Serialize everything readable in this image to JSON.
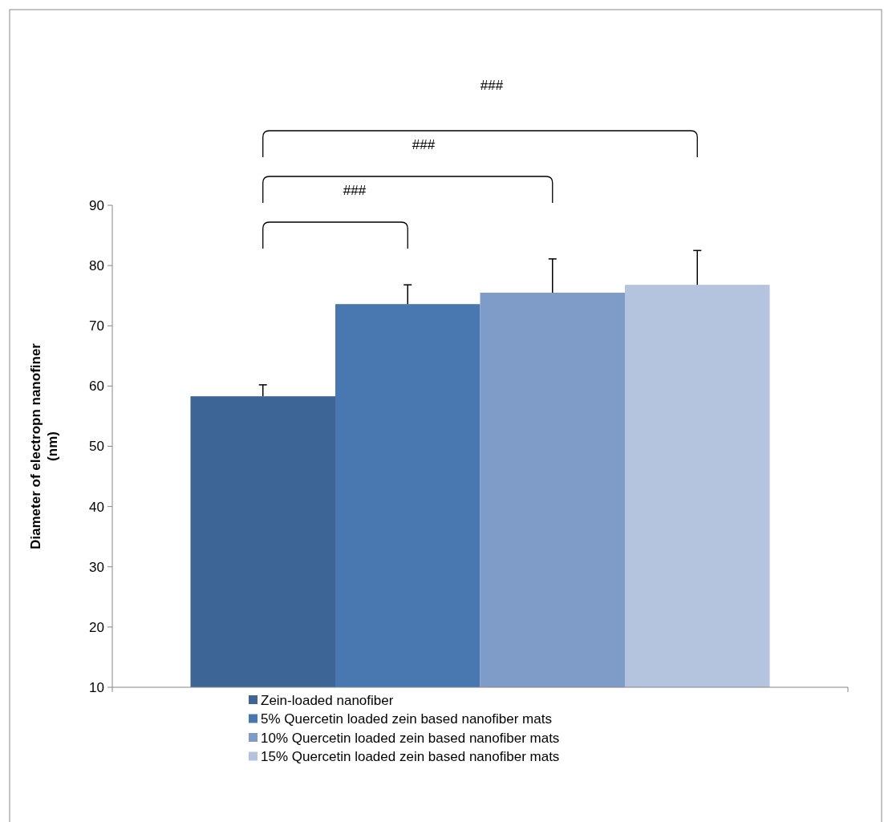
{
  "chart_data": {
    "type": "bar",
    "ylabel": "Diameter of electropn nanofiner (nm)",
    "categories": [
      null
    ],
    "ylim": [
      10,
      90
    ],
    "yticks": [
      10,
      20,
      30,
      40,
      50,
      60,
      70,
      80,
      90
    ],
    "grid": false,
    "legend": "bottom",
    "series": [
      {
        "name": "Zein-loaded nanofiber",
        "color": "#3d6696",
        "values": [
          58.3
        ],
        "errors": [
          [
            58.3,
            60.2
          ]
        ]
      },
      {
        "name": "5% Quercetin loaded zein based nanofiber mats",
        "color": "#4978b0",
        "values": [
          73.6
        ],
        "errors": [
          [
            73.6,
            76.8
          ]
        ]
      },
      {
        "name": "10% Quercetin loaded zein based nanofiber mats",
        "color": "#7f9cc8",
        "values": [
          75.5
        ],
        "errors": [
          [
            75.5,
            81.1
          ]
        ]
      },
      {
        "name": "15% Quercetin loaded zein based nanofiber mats",
        "color": "#b4c3de",
        "values": [
          76.8
        ],
        "errors": [
          [
            76.8,
            82.5
          ]
        ]
      }
    ],
    "annotations": [
      "###",
      "###",
      "###"
    ]
  }
}
